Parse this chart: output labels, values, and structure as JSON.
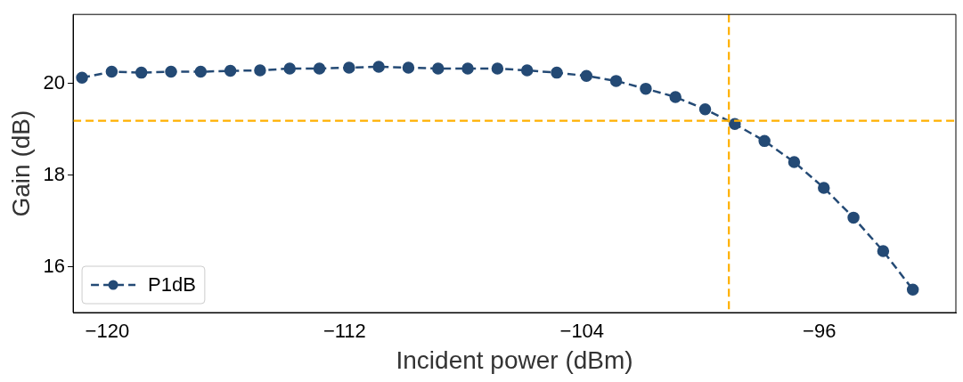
{
  "chart_data": {
    "type": "line",
    "xlabel": "Incident power (dBm)",
    "ylabel": "Gain (dB)",
    "x": [
      -120.85,
      -119.85,
      -118.85,
      -117.85,
      -116.85,
      -115.85,
      -114.85,
      -113.85,
      -112.85,
      -111.85,
      -110.85,
      -109.85,
      -108.85,
      -107.85,
      -106.85,
      -105.85,
      -104.85,
      -103.85,
      -102.85,
      -101.85,
      -100.85,
      -99.85,
      -98.85,
      -97.85,
      -96.85,
      -95.85,
      -94.85,
      -93.85,
      -92.85
    ],
    "series": [
      {
        "name": "P1dB",
        "color": "#244a75",
        "values": [
          20.12,
          20.25,
          20.23,
          20.25,
          20.25,
          20.27,
          20.28,
          20.32,
          20.32,
          20.34,
          20.36,
          20.34,
          20.32,
          20.32,
          20.32,
          20.28,
          20.23,
          20.16,
          20.05,
          19.88,
          19.7,
          19.43,
          19.11,
          18.74,
          18.28,
          17.72,
          17.07,
          16.34,
          15.5
        ]
      }
    ],
    "xlim": [
      -121.15,
      -91.4
    ],
    "ylim": [
      15,
      21.5
    ],
    "xticks": [
      {
        "value": -120,
        "label": "−120"
      },
      {
        "value": -112,
        "label": "−112"
      },
      {
        "value": -104,
        "label": "−104"
      },
      {
        "value": -96,
        "label": "−96"
      }
    ],
    "yticks": [
      16,
      18,
      20
    ],
    "ref_lines": [
      {
        "axis": "y",
        "value": 19.18,
        "color": "#ffb000",
        "line_style": "dashed"
      },
      {
        "axis": "x",
        "value": -99.05,
        "color": "#ffb000",
        "line_style": "dashed"
      }
    ],
    "marker": "circle",
    "line_style": "dashed",
    "legend": "bottom left",
    "grid": false
  }
}
